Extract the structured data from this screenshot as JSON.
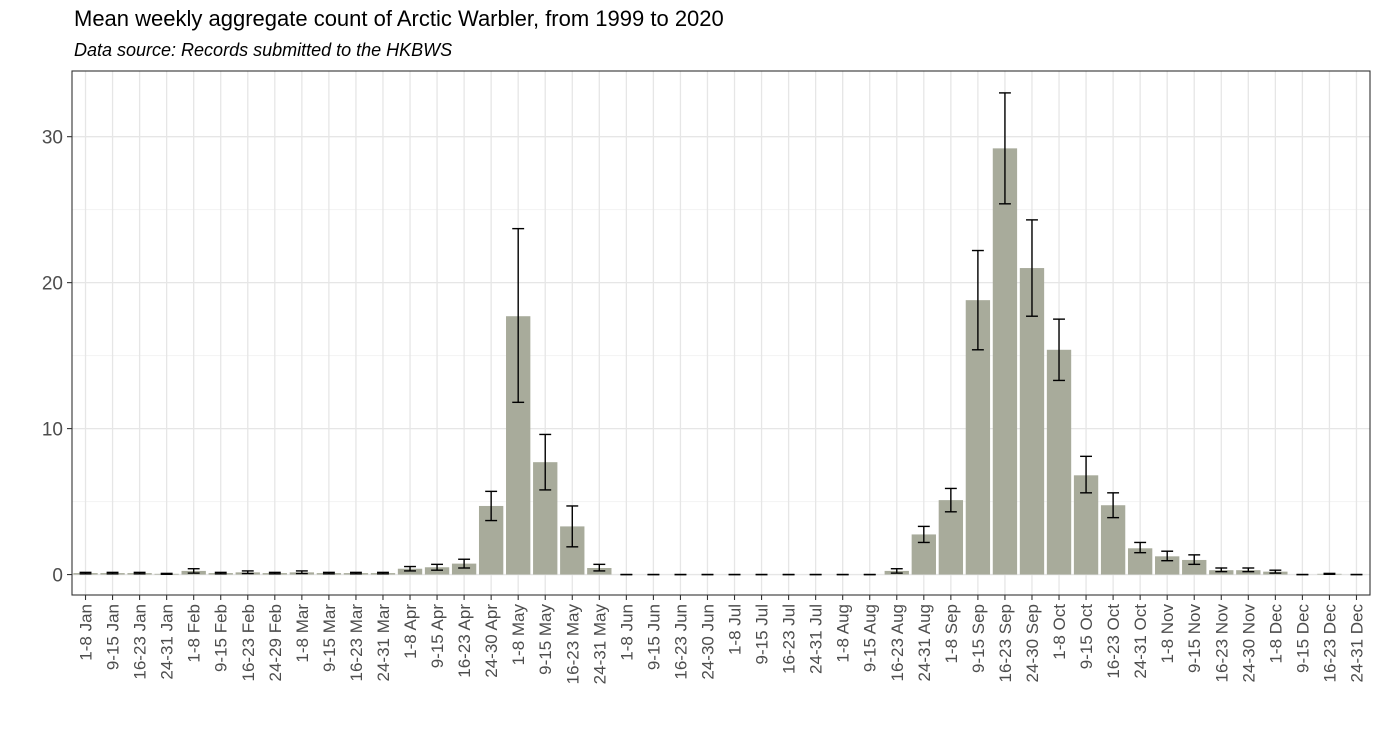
{
  "chart_data": {
    "type": "bar",
    "title": "Mean weekly aggregate count of Arctic Warbler, from 1999 to 2020",
    "subtitle": "Data source: Records submitted to the HKBWS",
    "xlabel": "",
    "ylabel": "",
    "ylim": [
      -1.4,
      34.5
    ],
    "yticks": [
      0,
      10,
      20,
      30
    ],
    "grid": true,
    "legend": "none",
    "bar_color": "#a8ab9b",
    "categories": [
      "1-8 Jan",
      "9-15 Jan",
      "16-23 Jan",
      "24-31 Jan",
      "1-8 Feb",
      "9-15 Feb",
      "16-23 Feb",
      "24-29 Feb",
      "1-8 Mar",
      "9-15 Mar",
      "16-23 Mar",
      "24-31 Mar",
      "1-8 Apr",
      "9-15 Apr",
      "16-23 Apr",
      "24-30 Apr",
      "1-8 May",
      "9-15 May",
      "16-23 May",
      "24-31 May",
      "1-8 Jun",
      "9-15 Jun",
      "16-23 Jun",
      "24-30 Jun",
      "1-8 Jul",
      "9-15 Jul",
      "16-23 Jul",
      "24-31 Jul",
      "1-8 Aug",
      "9-15 Aug",
      "16-23 Aug",
      "24-31 Aug",
      "1-8 Sep",
      "9-15 Sep",
      "16-23 Sep",
      "24-30 Sep",
      "1-8 Oct",
      "9-15 Oct",
      "16-23 Oct",
      "24-31 Oct",
      "1-8 Nov",
      "9-15 Nov",
      "16-23 Nov",
      "24-30 Nov",
      "1-8 Dec",
      "9-15 Dec",
      "16-23 Dec",
      "24-31 Dec"
    ],
    "values": [
      0.1,
      0.1,
      0.1,
      0.05,
      0.25,
      0.1,
      0.15,
      0.1,
      0.15,
      0.1,
      0.1,
      0.1,
      0.4,
      0.5,
      0.75,
      4.7,
      17.7,
      7.7,
      3.3,
      0.45,
      0,
      0,
      0,
      0,
      0,
      0,
      0,
      0,
      0,
      0,
      0.25,
      2.75,
      5.1,
      18.8,
      29.2,
      21.0,
      15.4,
      6.8,
      4.75,
      1.8,
      1.25,
      1.0,
      0.3,
      0.3,
      0.2,
      0,
      0.05,
      0
    ],
    "error_low": [
      0.05,
      0.05,
      0.05,
      0.02,
      0.1,
      0.05,
      0.07,
      0.05,
      0.07,
      0.05,
      0.05,
      0.05,
      0.25,
      0.3,
      0.45,
      3.7,
      11.8,
      5.8,
      1.9,
      0.25,
      0,
      0,
      0,
      0,
      0,
      0,
      0,
      0,
      0,
      0,
      0.1,
      2.2,
      4.3,
      15.4,
      25.4,
      17.7,
      13.3,
      5.6,
      3.9,
      1.5,
      0.95,
      0.7,
      0.2,
      0.2,
      0.1,
      0,
      0.02,
      0
    ],
    "error_high": [
      0.15,
      0.15,
      0.15,
      0.08,
      0.4,
      0.15,
      0.25,
      0.15,
      0.25,
      0.15,
      0.15,
      0.15,
      0.55,
      0.7,
      1.05,
      5.7,
      23.7,
      9.6,
      4.7,
      0.7,
      0,
      0,
      0,
      0,
      0,
      0,
      0,
      0,
      0,
      0,
      0.4,
      3.3,
      5.9,
      22.2,
      33.0,
      24.3,
      17.5,
      8.1,
      5.6,
      2.2,
      1.6,
      1.35,
      0.45,
      0.45,
      0.3,
      0,
      0.08,
      0
    ]
  }
}
